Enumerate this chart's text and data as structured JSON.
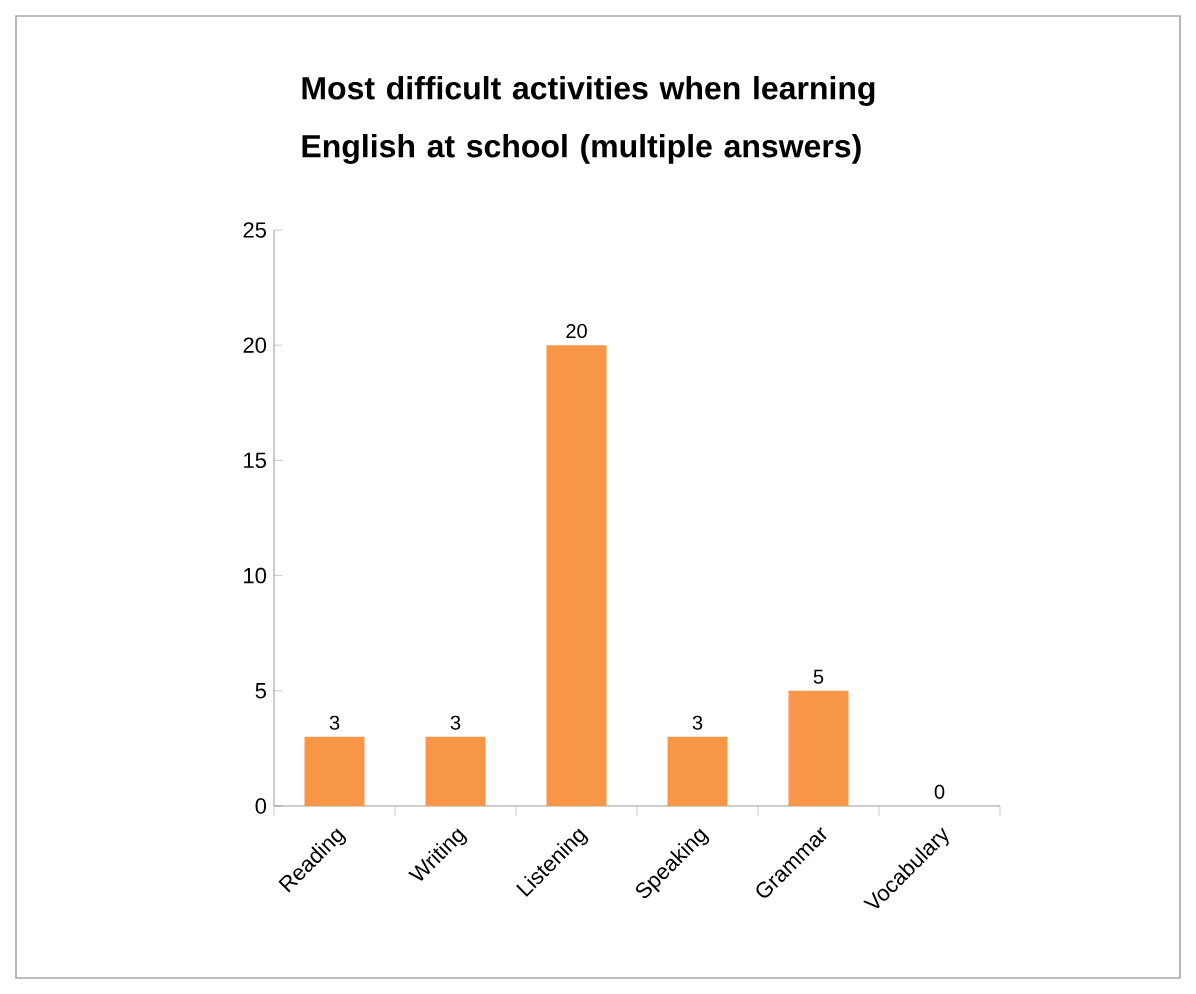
{
  "chart_data": {
    "type": "bar",
    "title": "Most difficult activities when learning English at school (multiple answers)",
    "categories": [
      "Reading",
      "Writing",
      "Listening",
      "Speaking",
      "Grammar",
      "Vocabulary"
    ],
    "values": [
      3,
      3,
      20,
      3,
      5,
      0
    ],
    "color": "#f79646",
    "ylim": [
      0,
      25
    ],
    "yticks": [
      0,
      5,
      10,
      15,
      20,
      25
    ],
    "data_labels": true
  }
}
